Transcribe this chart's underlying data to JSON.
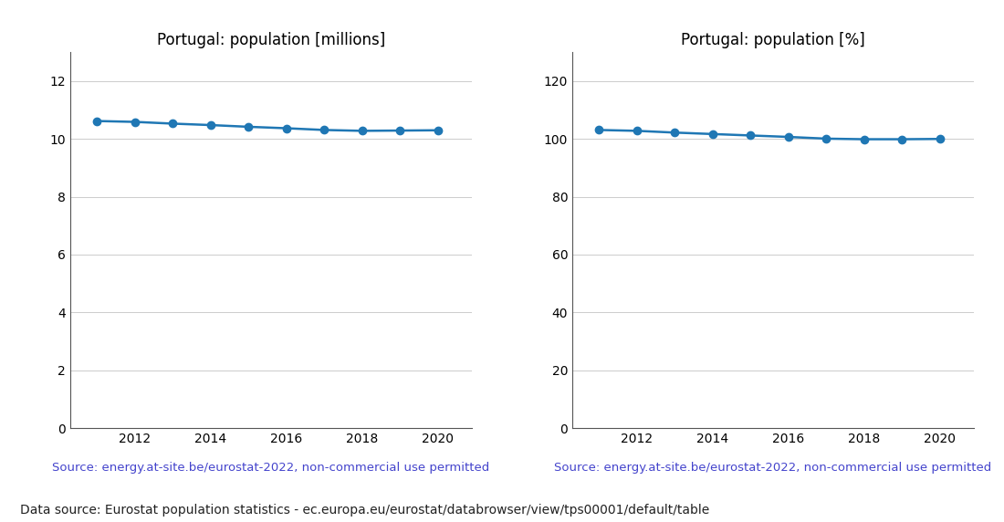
{
  "years": [
    2011,
    2012,
    2013,
    2014,
    2015,
    2016,
    2017,
    2018,
    2019,
    2020
  ],
  "population_millions": [
    10.62,
    10.59,
    10.53,
    10.48,
    10.42,
    10.37,
    10.31,
    10.28,
    10.29,
    10.3
  ],
  "population_pct": [
    103.1,
    102.8,
    102.2,
    101.7,
    101.2,
    100.7,
    100.1,
    99.9,
    99.9,
    100.0
  ],
  "title_millions": "Portugal: population [millions]",
  "title_pct": "Portugal: population [%]",
  "ylim_millions": [
    0,
    13
  ],
  "ylim_pct": [
    0,
    130
  ],
  "yticks_millions": [
    0,
    2,
    4,
    6,
    8,
    10,
    12
  ],
  "yticks_pct": [
    0,
    20,
    40,
    60,
    80,
    100,
    120
  ],
  "line_color": "#1f77b4",
  "marker": "o",
  "marker_size": 6,
  "source_text": "Source: energy.at-site.be/eurostat-2022, non-commercial use permitted",
  "source_color": "#4444cc",
  "footer_text": "Data source: Eurostat population statistics - ec.europa.eu/eurostat/databrowser/view/tps00001/default/table",
  "footer_color": "#222222",
  "bg_color": "#ffffff",
  "grid_color": "#aaaaaa",
  "title_fontsize": 12,
  "tick_fontsize": 10,
  "source_fontsize": 9.5,
  "footer_fontsize": 10
}
